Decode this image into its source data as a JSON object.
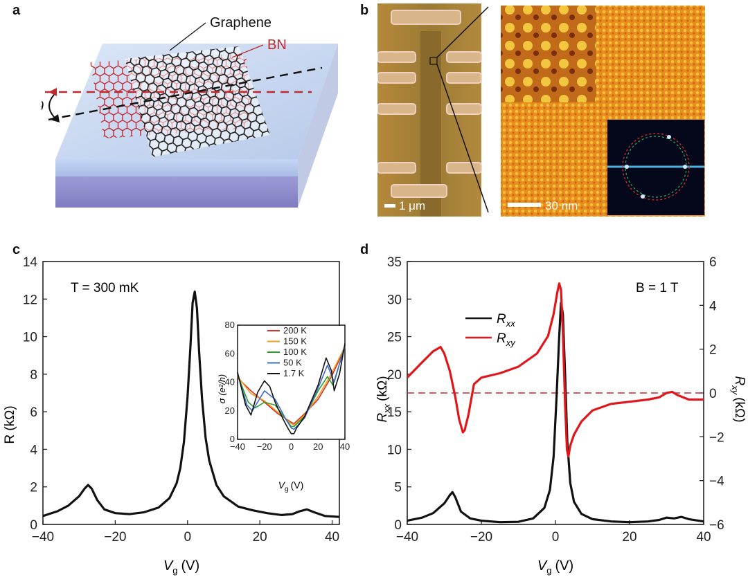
{
  "panels": {
    "a": "a",
    "b": "b",
    "c": "c",
    "d": "d"
  },
  "panel_a": {
    "label_graphene": "Graphene",
    "label_bn": "BN",
    "label_theta": "θ",
    "colors": {
      "bn": "#c0282d",
      "graphene": "#222222",
      "substrate_top": "#c9d8f0",
      "substrate_bottom": "#8c88c8"
    }
  },
  "panel_b": {
    "scale_left": "1 μm",
    "scale_right": "30 nm"
  },
  "chart_data": [
    {
      "id": "c",
      "type": "line",
      "xlabel_main": "V",
      "xlabel_sub": "g",
      "xlabel_unit": "(V)",
      "ylabel": "R (kΩ)",
      "annotation": "T = 300 mK",
      "xlim": [
        -40,
        42
      ],
      "ylim": [
        0,
        14
      ],
      "xticks": [
        -40,
        -20,
        0,
        20,
        40
      ],
      "yticks": [
        0,
        2,
        4,
        6,
        8,
        10,
        12,
        14
      ],
      "series": [
        {
          "color": "#111111",
          "x": [
            -40,
            -36,
            -33,
            -30,
            -28.5,
            -27.5,
            -26.5,
            -25,
            -23,
            -20,
            -16,
            -12,
            -8,
            -5,
            -3,
            -2,
            -1,
            0,
            0.8,
            1.4,
            2,
            2.6,
            3.2,
            4,
            5,
            6,
            8,
            10,
            14,
            18,
            22,
            26,
            29,
            31,
            33,
            35,
            38,
            42
          ],
          "y": [
            0.45,
            0.7,
            1.0,
            1.5,
            1.9,
            2.1,
            1.9,
            1.3,
            0.8,
            0.6,
            0.55,
            0.65,
            0.9,
            1.4,
            2.2,
            3.0,
            4.4,
            6.8,
            9.5,
            11.8,
            12.4,
            11.5,
            9.2,
            6.7,
            4.6,
            3.4,
            2.1,
            1.5,
            0.95,
            0.75,
            0.6,
            0.5,
            0.55,
            0.7,
            0.8,
            0.65,
            0.45,
            0.4
          ]
        }
      ]
    },
    {
      "id": "c-inset",
      "type": "line",
      "xlabel_main": "V",
      "xlabel_sub": "g",
      "xlabel_unit": "(V)",
      "ylabel": "σ (e²/h)",
      "xlim": [
        -40,
        40
      ],
      "ylim": [
        0,
        80
      ],
      "xticks": [
        -40,
        -20,
        0,
        20,
        40
      ],
      "yticks": [
        0,
        20,
        40,
        60,
        80
      ],
      "series": [
        {
          "name": "200 K",
          "color": "#d73027",
          "x": [
            -40,
            -30,
            -20,
            -10,
            0,
            2,
            10,
            20,
            30,
            40
          ],
          "y": [
            43,
            34,
            26,
            18,
            12,
            11,
            18,
            28,
            44,
            64
          ]
        },
        {
          "name": "150 K",
          "color": "#f29b1d",
          "x": [
            -40,
            -30,
            -20,
            -10,
            0,
            2,
            10,
            20,
            30,
            40
          ],
          "y": [
            44,
            32,
            27,
            19,
            11,
            10,
            17,
            30,
            46,
            65
          ]
        },
        {
          "name": "100 K",
          "color": "#2ca02c",
          "x": [
            -40,
            -32,
            -27,
            -20,
            -12,
            -4,
            0,
            2,
            10,
            20,
            27,
            31,
            40
          ],
          "y": [
            45,
            26,
            22,
            26,
            24,
            14,
            9,
            9,
            16,
            34,
            44,
            38,
            65
          ]
        },
        {
          "name": "50 K",
          "color": "#3b6cc6",
          "x": [
            -40,
            -33,
            -29,
            -20,
            -12,
            -4,
            0,
            2,
            10,
            20,
            27,
            32,
            40
          ],
          "y": [
            46,
            24,
            20,
            34,
            28,
            14,
            8,
            7,
            15,
            36,
            52,
            40,
            66
          ]
        },
        {
          "name": "1.7 K",
          "color": "#111111",
          "x": [
            -40,
            -34,
            -30,
            -25,
            -20,
            -16,
            -12,
            -6,
            -2,
            0,
            2,
            4,
            10,
            20,
            26,
            30,
            32,
            36,
            40
          ],
          "y": [
            47,
            24,
            17,
            33,
            41,
            37,
            26,
            14,
            7,
            4,
            4,
            8,
            16,
            38,
            57,
            48,
            34,
            46,
            67
          ]
        }
      ]
    },
    {
      "id": "d",
      "type": "line",
      "xlabel_main": "V",
      "xlabel_sub": "g",
      "xlabel_unit": "(V)",
      "ylabel_left_main": "R",
      "ylabel_left_sub": "xx",
      "ylabel_left_unit": "(kΩ)",
      "ylabel_right_main": "R",
      "ylabel_right_sub": "xy",
      "ylabel_right_unit": "(kΩ)",
      "annotation": "B = 1 T",
      "xlim": [
        -40,
        40
      ],
      "ylim_left": [
        0,
        35
      ],
      "ylim_right": [
        -6,
        6
      ],
      "xticks": [
        -40,
        -20,
        0,
        20,
        40
      ],
      "yticks_left": [
        0,
        5,
        10,
        15,
        20,
        25,
        30,
        35
      ],
      "yticks_right": [
        -6,
        -4,
        -2,
        0,
        2,
        4,
        6
      ],
      "legend": [
        {
          "main": "R",
          "sub": "xx",
          "color": "#111111"
        },
        {
          "main": "R",
          "sub": "xy",
          "color": "#e0161b"
        }
      ],
      "series": [
        {
          "name": "Rxx",
          "axis": "left",
          "color": "#111111",
          "x": [
            -40,
            -36,
            -33,
            -30,
            -28.5,
            -27.8,
            -27,
            -25.5,
            -23,
            -20,
            -15,
            -10,
            -6,
            -3,
            -1.5,
            -0.5,
            0.3,
            1,
            1.5,
            2,
            2.6,
            3.2,
            4,
            5,
            7,
            10,
            15,
            20,
            25,
            28,
            30,
            32,
            34,
            36,
            40
          ],
          "y": [
            0.5,
            0.9,
            1.5,
            2.8,
            3.9,
            4.3,
            3.6,
            1.7,
            0.8,
            0.5,
            0.3,
            0.35,
            0.8,
            2.2,
            4.6,
            9,
            17,
            25,
            29.5,
            28,
            20,
            11,
            5.5,
            3,
            1.4,
            0.7,
            0.4,
            0.3,
            0.4,
            0.6,
            0.9,
            0.8,
            1.0,
            0.7,
            0.4
          ]
        },
        {
          "name": "Rxy",
          "axis": "right",
          "color": "#e0161b",
          "x": [
            -40,
            -36,
            -33,
            -31,
            -30,
            -28.5,
            -27,
            -26,
            -25,
            -24.5,
            -23.5,
            -22,
            -20,
            -15,
            -10,
            -5,
            -2,
            -0.5,
            0.5,
            1,
            1.5,
            2,
            2.6,
            3.1,
            3.5,
            4,
            5,
            7,
            10,
            15,
            20,
            25,
            28,
            30,
            31.5,
            33,
            36,
            40
          ],
          "y": [
            0.7,
            1.4,
            1.9,
            2.1,
            1.8,
            1.0,
            -0.2,
            -1.2,
            -1.8,
            -1.7,
            -1.0,
            0.4,
            0.7,
            0.9,
            1.2,
            1.8,
            2.6,
            3.6,
            4.6,
            5.0,
            4.7,
            2.8,
            -0.5,
            -2.6,
            -2.9,
            -2.4,
            -1.9,
            -1.3,
            -0.8,
            -0.5,
            -0.4,
            -0.3,
            -0.2,
            0.0,
            0.05,
            -0.1,
            -0.3,
            -0.3
          ]
        }
      ],
      "reference_line": {
        "axis": "right",
        "y": 0,
        "color": "#c0282d",
        "style": "dashed"
      }
    }
  ]
}
